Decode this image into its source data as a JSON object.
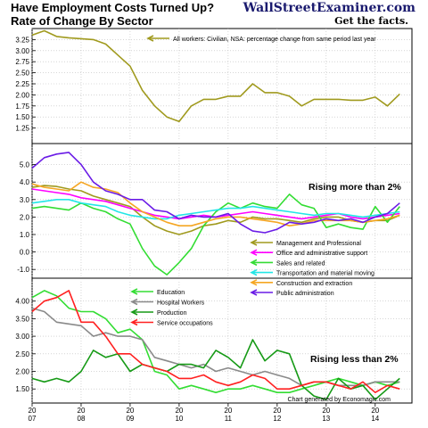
{
  "header": {
    "title_line1": "Have Employment Costs Turned Up?",
    "title_line2": "Rate of Change By Sector",
    "brand": "WallStreetExaminer.com",
    "tagline": "Get the facts."
  },
  "footer": {
    "credit": "Chart generated by Economagic.com"
  },
  "colors": {
    "olive": "#a09a1e",
    "magenta": "#ff00ff",
    "green": "#33dd33",
    "cyan": "#22e6e6",
    "orange": "#f5a623",
    "purple": "#6a1be6",
    "gray": "#8a8a8a",
    "darkgreen": "#169a16",
    "red": "#ff2020"
  },
  "chart_data": [
    {
      "type": "line",
      "panel": "top",
      "ylim": [
        1.0,
        3.5
      ],
      "yticks": [
        "3.25",
        "3.00",
        "2.75",
        "2.50",
        "2.25",
        "2.00",
        "1.75",
        "1.50",
        "1.25"
      ],
      "ytick_values": [
        3.25,
        3.0,
        2.75,
        2.5,
        2.25,
        2.0,
        1.75,
        1.5,
        1.25
      ],
      "grid": true,
      "legend_position": "top",
      "series": [
        {
          "name": "All workers: Civilian, NSA: percentage change from same period last year",
          "color_key": "olive",
          "x": [
            2007.0,
            2007.25,
            2007.5,
            2007.75,
            2008.0,
            2008.25,
            2008.5,
            2008.75,
            2009.0,
            2009.25,
            2009.5,
            2009.75,
            2010.0,
            2010.25,
            2010.5,
            2010.75,
            2011.0,
            2011.25,
            2011.5,
            2011.75,
            2012.0,
            2012.25,
            2012.5,
            2012.75,
            2013.0,
            2013.25,
            2013.5,
            2013.75,
            2014.0,
            2014.25,
            2014.5
          ],
          "values": [
            3.35,
            3.45,
            3.32,
            3.29,
            3.27,
            3.25,
            3.15,
            2.9,
            2.65,
            2.1,
            1.75,
            1.5,
            1.4,
            1.75,
            1.9,
            1.9,
            1.97,
            1.97,
            2.25,
            2.05,
            2.05,
            1.97,
            1.75,
            1.9,
            1.9,
            1.9,
            1.88,
            1.88,
            1.95,
            1.75,
            2.02
          ]
        }
      ]
    },
    {
      "type": "line",
      "panel": "middle",
      "ylim": [
        -1.5,
        6.0
      ],
      "yticks": [
        "5.0",
        "4.0",
        "3.0",
        "2.0",
        "1.0",
        "0.0",
        "-1.0"
      ],
      "ytick_values": [
        5,
        4,
        3,
        2,
        1,
        0,
        -1
      ],
      "grid": true,
      "legend_position": "bottom-right",
      "annotation": "Rising more than 2%",
      "series": [
        {
          "name": "Management and Professional",
          "color_key": "olive",
          "x": [
            2007.0,
            2007.25,
            2007.5,
            2007.75,
            2008.0,
            2008.25,
            2008.5,
            2008.75,
            2009.0,
            2009.25,
            2009.5,
            2009.75,
            2010.0,
            2010.25,
            2010.5,
            2010.75,
            2011.0,
            2011.25,
            2011.5,
            2011.75,
            2012.0,
            2012.25,
            2012.5,
            2012.75,
            2013.0,
            2013.25,
            2013.5,
            2013.75,
            2014.0,
            2014.25,
            2014.5
          ],
          "values": [
            3.7,
            3.8,
            3.75,
            3.6,
            3.5,
            3.2,
            3.0,
            2.8,
            2.6,
            2.0,
            1.5,
            1.2,
            1.0,
            1.2,
            1.5,
            1.6,
            1.8,
            1.7,
            2.0,
            1.9,
            1.9,
            1.8,
            1.7,
            1.9,
            2.0,
            2.0,
            1.8,
            1.7,
            1.8,
            1.8,
            2.1
          ]
        },
        {
          "name": "Office and administrative support",
          "color_key": "magenta",
          "x": [
            2007.0,
            2007.25,
            2007.5,
            2007.75,
            2008.0,
            2008.25,
            2008.5,
            2008.75,
            2009.0,
            2009.25,
            2009.5,
            2009.75,
            2010.0,
            2010.25,
            2010.5,
            2010.75,
            2011.0,
            2011.25,
            2011.5,
            2011.75,
            2012.0,
            2012.25,
            2012.5,
            2012.75,
            2013.0,
            2013.25,
            2013.5,
            2013.75,
            2014.0,
            2014.25,
            2014.5
          ],
          "values": [
            3.6,
            3.5,
            3.4,
            3.3,
            3.1,
            3.0,
            2.9,
            2.7,
            2.5,
            2.3,
            2.1,
            2.0,
            1.9,
            2.0,
            2.1,
            2.0,
            2.1,
            2.2,
            2.3,
            2.2,
            2.1,
            2.0,
            1.9,
            2.0,
            2.1,
            2.2,
            2.0,
            1.9,
            2.0,
            2.1,
            2.2
          ]
        },
        {
          "name": "Sales and related",
          "color_key": "green",
          "x": [
            2007.0,
            2007.25,
            2007.5,
            2007.75,
            2008.0,
            2008.25,
            2008.5,
            2008.75,
            2009.0,
            2009.25,
            2009.5,
            2009.75,
            2010.0,
            2010.25,
            2010.5,
            2010.75,
            2011.0,
            2011.25,
            2011.5,
            2011.75,
            2012.0,
            2012.25,
            2012.5,
            2012.75,
            2013.0,
            2013.25,
            2013.5,
            2013.75,
            2014.0,
            2014.25,
            2014.5
          ],
          "values": [
            2.5,
            2.6,
            2.5,
            2.4,
            2.8,
            2.5,
            2.3,
            1.9,
            1.6,
            0.2,
            -0.8,
            -1.3,
            -0.6,
            0.2,
            1.5,
            2.3,
            2.8,
            2.5,
            2.8,
            2.6,
            2.5,
            3.3,
            2.7,
            2.5,
            1.4,
            1.6,
            1.4,
            1.3,
            2.6,
            1.7,
            2.6
          ]
        },
        {
          "name": "Transportation and material moving",
          "color_key": "cyan",
          "x": [
            2007.0,
            2007.25,
            2007.5,
            2007.75,
            2008.0,
            2008.25,
            2008.5,
            2008.75,
            2009.0,
            2009.25,
            2009.5,
            2009.75,
            2010.0,
            2010.25,
            2010.5,
            2010.75,
            2011.0,
            2011.25,
            2011.5,
            2011.75,
            2012.0,
            2012.25,
            2012.5,
            2012.75,
            2013.0,
            2013.25,
            2013.5,
            2013.75,
            2014.0,
            2014.25,
            2014.5
          ],
          "values": [
            2.8,
            2.9,
            3.0,
            3.0,
            2.8,
            2.7,
            2.6,
            2.3,
            2.1,
            2.0,
            1.9,
            1.9,
            2.1,
            2.2,
            2.3,
            2.4,
            2.5,
            2.5,
            2.6,
            2.5,
            2.4,
            2.3,
            2.2,
            2.1,
            2.2,
            2.2,
            2.1,
            2.0,
            2.1,
            2.2,
            2.3
          ]
        },
        {
          "name": "Construction and extraction",
          "color_key": "orange",
          "x": [
            2007.0,
            2007.25,
            2007.5,
            2007.75,
            2008.0,
            2008.25,
            2008.5,
            2008.75,
            2009.0,
            2009.25,
            2009.5,
            2009.75,
            2010.0,
            2010.25,
            2010.5,
            2010.75,
            2011.0,
            2011.25,
            2011.5,
            2011.75,
            2012.0,
            2012.25,
            2012.5,
            2012.75,
            2013.0,
            2013.25,
            2013.5,
            2013.75,
            2014.0,
            2014.25,
            2014.5
          ],
          "values": [
            3.9,
            3.7,
            3.6,
            3.5,
            4.0,
            3.7,
            3.6,
            3.4,
            2.8,
            2.3,
            2.0,
            1.7,
            1.5,
            1.5,
            1.7,
            1.9,
            2.0,
            2.0,
            1.9,
            1.8,
            1.7,
            1.5,
            1.6,
            1.8,
            1.8,
            1.8,
            1.8,
            1.7,
            1.8,
            1.9,
            2.1
          ]
        },
        {
          "name": "Public administration",
          "color_key": "purple",
          "x": [
            2007.0,
            2007.25,
            2007.5,
            2007.75,
            2008.0,
            2008.25,
            2008.5,
            2008.75,
            2009.0,
            2009.25,
            2009.5,
            2009.75,
            2010.0,
            2010.25,
            2010.5,
            2010.75,
            2011.0,
            2011.25,
            2011.5,
            2011.75,
            2012.0,
            2012.25,
            2012.5,
            2012.75,
            2013.0,
            2013.25,
            2013.5,
            2013.75,
            2014.0,
            2014.25,
            2014.5
          ],
          "values": [
            4.8,
            5.4,
            5.6,
            5.7,
            5.0,
            4.0,
            3.5,
            3.3,
            3.0,
            3.0,
            2.4,
            2.3,
            1.9,
            2.1,
            2.0,
            2.0,
            2.2,
            1.6,
            1.2,
            1.1,
            1.3,
            1.7,
            1.6,
            1.7,
            1.9,
            1.8,
            1.9,
            1.7,
            2.0,
            2.2,
            2.8
          ]
        }
      ]
    },
    {
      "type": "line",
      "panel": "bottom",
      "ylim": [
        1.1,
        4.55
      ],
      "yticks": [
        "4.00",
        "3.50",
        "3.00",
        "2.50",
        "2.00",
        "1.50"
      ],
      "ytick_values": [
        4.0,
        3.5,
        3.0,
        2.5,
        2.0,
        1.5
      ],
      "xticks": [
        "20\n07",
        "20\n08",
        "20\n09",
        "20\n10",
        "20\n11",
        "20\n12",
        "20\n13",
        "20\n14"
      ],
      "xtick_values": [
        2007,
        2008,
        2009,
        2010,
        2011,
        2012,
        2013,
        2014
      ],
      "xlim": [
        2007.0,
        2014.75
      ],
      "grid": true,
      "legend_position": "top-left",
      "annotation": "Rising less than 2%",
      "series": [
        {
          "name": "Education",
          "color_key": "green",
          "x": [
            2007.0,
            2007.25,
            2007.5,
            2007.75,
            2008.0,
            2008.25,
            2008.5,
            2008.75,
            2009.0,
            2009.25,
            2009.5,
            2009.75,
            2010.0,
            2010.25,
            2010.5,
            2010.75,
            2011.0,
            2011.25,
            2011.5,
            2011.75,
            2012.0,
            2012.25,
            2012.5,
            2012.75,
            2013.0,
            2013.25,
            2013.5,
            2013.75,
            2014.0,
            2014.25,
            2014.5
          ],
          "values": [
            4.1,
            4.3,
            4.15,
            3.8,
            3.7,
            3.7,
            3.5,
            3.1,
            3.2,
            2.9,
            2.0,
            1.9,
            1.5,
            1.6,
            1.5,
            1.4,
            1.5,
            1.5,
            1.6,
            1.5,
            1.4,
            1.4,
            1.5,
            1.6,
            1.7,
            1.8,
            1.7,
            1.6,
            1.7,
            1.6,
            1.7
          ]
        },
        {
          "name": "Hospital Workers",
          "color_key": "gray",
          "x": [
            2007.0,
            2007.25,
            2007.5,
            2007.75,
            2008.0,
            2008.25,
            2008.5,
            2008.75,
            2009.0,
            2009.25,
            2009.5,
            2009.75,
            2010.0,
            2010.25,
            2010.5,
            2010.75,
            2011.0,
            2011.25,
            2011.5,
            2011.75,
            2012.0,
            2012.25,
            2012.5,
            2012.75,
            2013.0,
            2013.25,
            2013.5,
            2013.75,
            2014.0,
            2014.25,
            2014.5
          ],
          "values": [
            3.8,
            3.7,
            3.4,
            3.35,
            3.3,
            3.0,
            3.1,
            3.0,
            3.0,
            2.9,
            2.4,
            2.3,
            2.2,
            2.1,
            2.2,
            2.0,
            2.1,
            2.0,
            1.9,
            2.0,
            1.9,
            1.8,
            1.6,
            1.7,
            1.7,
            1.6,
            1.6,
            1.6,
            1.7,
            1.7,
            1.7
          ]
        },
        {
          "name": "Production",
          "color_key": "darkgreen",
          "x": [
            2007.0,
            2007.25,
            2007.5,
            2007.75,
            2008.0,
            2008.25,
            2008.5,
            2008.75,
            2009.0,
            2009.25,
            2009.5,
            2009.75,
            2010.0,
            2010.25,
            2010.5,
            2010.75,
            2011.0,
            2011.25,
            2011.5,
            2011.75,
            2012.0,
            2012.25,
            2012.5,
            2012.75,
            2013.0,
            2013.25,
            2013.5,
            2013.75,
            2014.0,
            2014.25,
            2014.5
          ],
          "values": [
            1.8,
            1.7,
            1.8,
            1.7,
            2.0,
            2.6,
            2.4,
            2.5,
            2.0,
            2.2,
            2.1,
            2.0,
            2.2,
            2.2,
            2.1,
            2.6,
            2.4,
            2.1,
            2.9,
            2.3,
            2.6,
            2.5,
            1.6,
            1.3,
            1.2,
            1.8,
            1.5,
            1.6,
            1.2,
            1.5,
            1.8
          ]
        },
        {
          "name": "Service occupations",
          "color_key": "red",
          "x": [
            2007.0,
            2007.25,
            2007.5,
            2007.75,
            2008.0,
            2008.25,
            2008.5,
            2008.75,
            2009.0,
            2009.25,
            2009.5,
            2009.75,
            2010.0,
            2010.25,
            2010.5,
            2010.75,
            2011.0,
            2011.25,
            2011.5,
            2011.75,
            2012.0,
            2012.25,
            2012.5,
            2012.75,
            2013.0,
            2013.25,
            2013.5,
            2013.75,
            2014.0,
            2014.25,
            2014.5
          ],
          "values": [
            3.7,
            4.0,
            4.1,
            4.3,
            3.4,
            3.4,
            3.0,
            2.5,
            2.5,
            2.2,
            2.1,
            2.0,
            1.8,
            1.8,
            1.9,
            1.7,
            1.6,
            1.7,
            1.9,
            1.8,
            1.5,
            1.5,
            1.6,
            1.7,
            1.7,
            1.6,
            1.5,
            1.7,
            1.4,
            1.6,
            1.5
          ]
        }
      ]
    }
  ]
}
